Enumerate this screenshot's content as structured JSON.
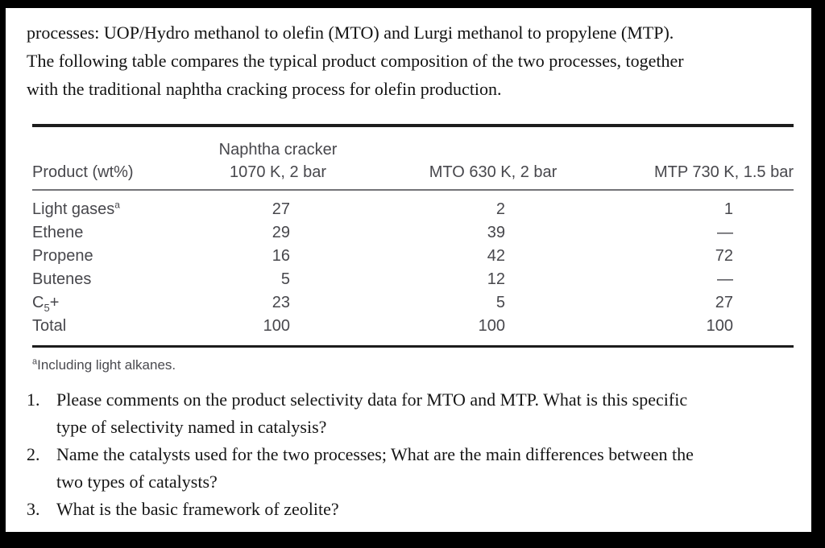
{
  "colors": {
    "frame": "#000000",
    "page_background": "#ffffff",
    "body_text": "#121212",
    "table_text": "#47474c",
    "rule_heavy": "#1c1c1c",
    "rule_light": "#737378"
  },
  "intro": {
    "lines": [
      "processes: UOP/Hydro methanol to olefin (MTO) and Lurgi methanol to propylene (MTP).",
      "The following table compares the typical product composition of the two processes, together",
      "with the traditional naphtha cracking process for olefin production."
    ]
  },
  "table": {
    "header": {
      "product": "Product (wt%)",
      "naphtha_line1": "Naphtha cracker",
      "naphtha_line2": "1070 K, 2 bar",
      "mto": "MTO 630 K, 2 bar",
      "mtp": "MTP 730 K, 1.5 bar"
    },
    "rows": [
      {
        "label": "Light gases",
        "sup": "a",
        "values": [
          "27",
          "2",
          "1"
        ]
      },
      {
        "label": "Ethene",
        "values": [
          "29",
          "39",
          "—"
        ]
      },
      {
        "label": "Propene",
        "values": [
          "16",
          "42",
          "72"
        ]
      },
      {
        "label": "Butenes",
        "values": [
          "5",
          "12",
          "—"
        ]
      },
      {
        "label": "C",
        "sub": "5",
        "label_after": "+",
        "values": [
          "23",
          "5",
          "27"
        ]
      },
      {
        "label": "Total",
        "values": [
          "100",
          "100",
          "100"
        ]
      }
    ],
    "footnote_sup": "a",
    "footnote_text": "Including light alkanes."
  },
  "questions": [
    {
      "number": "1.",
      "lines": [
        "Please comments on the product selectivity data for MTO and MTP. What is this specific",
        "type of selectivity named in catalysis?"
      ]
    },
    {
      "number": "2.",
      "lines": [
        "Name the catalysts used for the two processes; What are the main differences between the",
        "two types of catalysts?"
      ]
    },
    {
      "number": "3.",
      "lines": [
        "What is the basic framework of zeolite?"
      ]
    }
  ]
}
